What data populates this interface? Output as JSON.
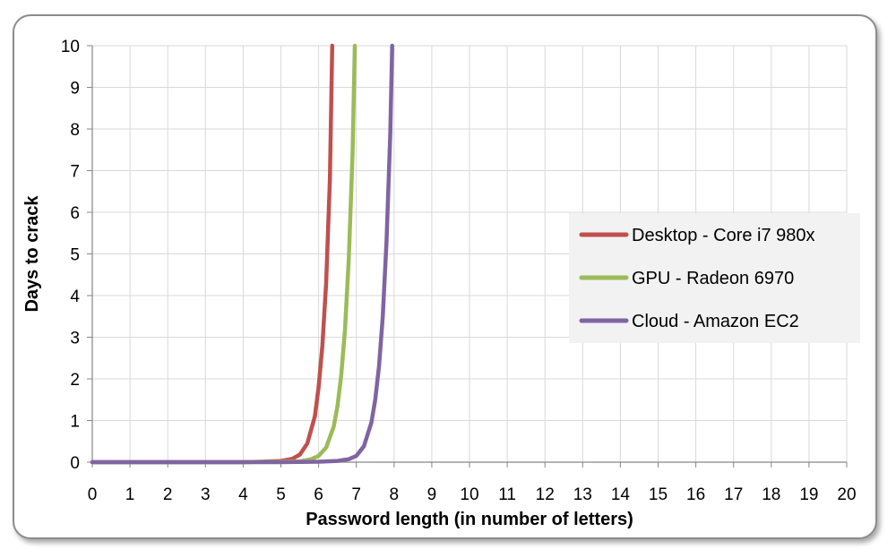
{
  "chart_data": {
    "type": "line",
    "title": "",
    "xlabel": "Password length (in number of letters)",
    "ylabel": "Days to crack",
    "xlim": [
      0,
      20
    ],
    "ylim": [
      0,
      10
    ],
    "x_ticks": [
      "0",
      "1",
      "2",
      "3",
      "4",
      "5",
      "6",
      "7",
      "8",
      "9",
      "10",
      "11",
      "12",
      "13",
      "14",
      "15",
      "16",
      "17",
      "18",
      "19",
      "20"
    ],
    "y_ticks": [
      "0",
      "1",
      "2",
      "3",
      "4",
      "5",
      "6",
      "7",
      "8",
      "9",
      "10"
    ],
    "grid": true,
    "legend_position": "right",
    "series": [
      {
        "name": "Desktop - Core i7 980x",
        "color": "#c0504d",
        "x": [
          0,
          1,
          2,
          3,
          4,
          4.5,
          5,
          5.3,
          5.5,
          5.7,
          5.9,
          6.0,
          6.1,
          6.2,
          6.3,
          6.36
        ],
        "y": [
          0,
          0,
          0,
          0,
          0,
          0.01,
          0.03,
          0.08,
          0.18,
          0.45,
          1.1,
          1.8,
          2.8,
          4.3,
          6.8,
          10
        ]
      },
      {
        "name": "GPU - Radeon 6970",
        "color": "#9bbb59",
        "x": [
          0,
          1,
          2,
          3,
          4,
          5,
          5.5,
          5.8,
          6.0,
          6.2,
          6.4,
          6.5,
          6.6,
          6.7,
          6.8,
          6.9,
          6.96
        ],
        "y": [
          0,
          0,
          0,
          0,
          0,
          0.01,
          0.02,
          0.07,
          0.15,
          0.35,
          0.85,
          1.35,
          2.1,
          3.2,
          4.9,
          7.4,
          10
        ]
      },
      {
        "name": "Cloud - Amazon EC2",
        "color": "#8064a2",
        "x": [
          0,
          1,
          2,
          3,
          4,
          5,
          6,
          6.5,
          6.8,
          7.0,
          7.2,
          7.4,
          7.5,
          7.6,
          7.7,
          7.8,
          7.9,
          7.95
        ],
        "y": [
          0,
          0,
          0,
          0,
          0,
          0,
          0.01,
          0.03,
          0.07,
          0.15,
          0.38,
          0.95,
          1.5,
          2.3,
          3.5,
          5.3,
          7.9,
          10
        ]
      }
    ]
  }
}
